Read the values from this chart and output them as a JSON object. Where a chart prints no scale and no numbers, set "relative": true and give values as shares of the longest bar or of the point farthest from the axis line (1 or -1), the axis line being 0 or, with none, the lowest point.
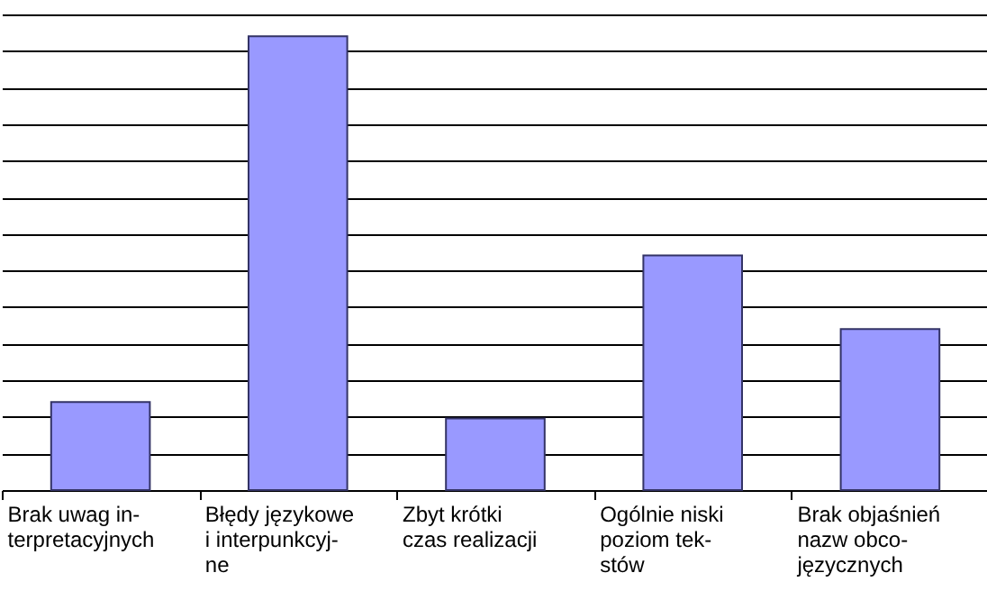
{
  "chart_data": {
    "type": "bar",
    "relative": true,
    "grid": "y",
    "categories": [
      "Brak uwag in-\nterpretacyjnych",
      "Błędy językowe\ni interpunkcyj-\nne",
      "Zbyt krótki\nczas realizacji",
      "Ogólnie niski\npoziom tek-\nstów",
      "Brak objaśnień\nnazw obco-\njęzycznych"
    ],
    "values": [
      0.194,
      1,
      0.158,
      0.517,
      0.355
    ],
    "color": "#9999ff"
  }
}
